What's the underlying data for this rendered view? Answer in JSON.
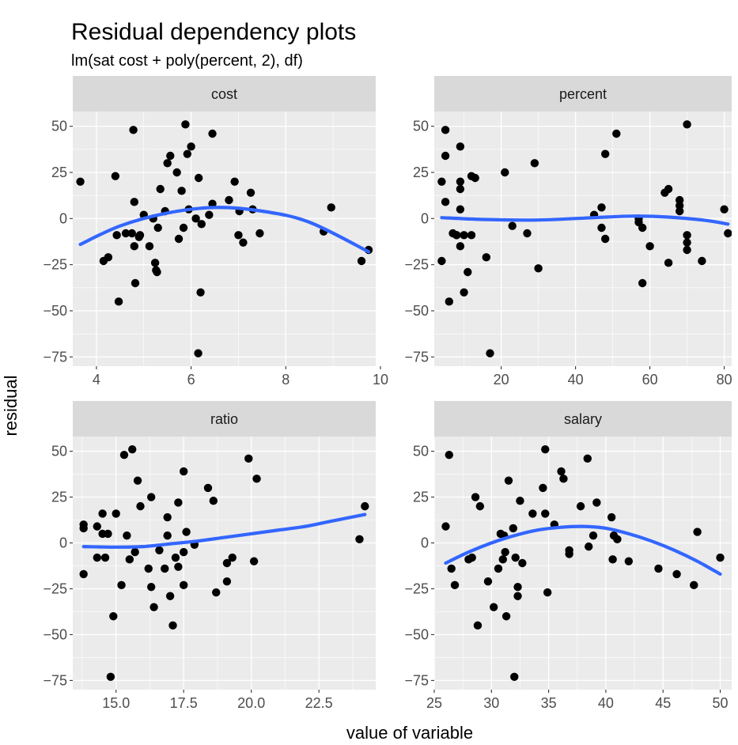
{
  "chart_data": {
    "type": "scatter",
    "title": "Residual dependency plots",
    "subtitle": "lm(sat cost + poly(percent, 2), df)",
    "xlabel": "value of variable",
    "ylabel": "residual",
    "grid": true,
    "colors": {
      "panel_bg": "#ebebeb",
      "strip_bg": "#d9d9d9",
      "grid_major": "#ffffff",
      "point": "#000000",
      "smooth": "#3366ff",
      "tick_text": "#4d4d4d"
    },
    "y_axis": {
      "range": [
        -80,
        58
      ],
      "ticks": [
        -75,
        -50,
        -25,
        0,
        25,
        50
      ],
      "tick_labels": [
        "−75",
        "−50",
        "−25",
        "0",
        "25",
        "50"
      ]
    },
    "panels": [
      {
        "facet": "cost",
        "xlim": [
          3.5,
          9.9
        ],
        "x_ticks": [
          4,
          6,
          8,
          10
        ],
        "x_tick_labels": [
          "4",
          "6",
          "8",
          "10"
        ],
        "points": [
          [
            3.66,
            20
          ],
          [
            4.15,
            -23
          ],
          [
            4.25,
            -21
          ],
          [
            4.4,
            23
          ],
          [
            4.43,
            -9
          ],
          [
            4.47,
            -45
          ],
          [
            4.62,
            -8
          ],
          [
            4.75,
            -8
          ],
          [
            4.78,
            48
          ],
          [
            4.8,
            9
          ],
          [
            4.8,
            -15
          ],
          [
            4.82,
            -35
          ],
          [
            4.9,
            -10
          ],
          [
            4.92,
            -9
          ],
          [
            5.0,
            2
          ],
          [
            5.12,
            -15
          ],
          [
            5.2,
            0
          ],
          [
            5.24,
            -24
          ],
          [
            5.26,
            -28
          ],
          [
            5.28,
            -29
          ],
          [
            5.3,
            -5
          ],
          [
            5.35,
            16
          ],
          [
            5.45,
            4
          ],
          [
            5.5,
            30
          ],
          [
            5.56,
            34
          ],
          [
            5.7,
            25
          ],
          [
            5.74,
            -11
          ],
          [
            5.8,
            15
          ],
          [
            5.84,
            -5
          ],
          [
            5.88,
            51
          ],
          [
            5.92,
            35
          ],
          [
            5.95,
            5
          ],
          [
            6.0,
            39
          ],
          [
            6.1,
            0
          ],
          [
            6.15,
            -73
          ],
          [
            6.16,
            22
          ],
          [
            6.2,
            -40
          ],
          [
            6.22,
            -3
          ],
          [
            6.38,
            2
          ],
          [
            6.45,
            46
          ],
          [
            6.45,
            8
          ],
          [
            6.8,
            10
          ],
          [
            6.92,
            20
          ],
          [
            7.0,
            -9
          ],
          [
            7.02,
            4
          ],
          [
            7.1,
            -13
          ],
          [
            7.26,
            14
          ],
          [
            7.3,
            5
          ],
          [
            7.45,
            -8
          ],
          [
            8.8,
            -7
          ],
          [
            8.96,
            6
          ],
          [
            9.6,
            -23
          ],
          [
            9.75,
            -17
          ]
        ],
        "smooth": [
          [
            3.66,
            -14
          ],
          [
            4.5,
            -4
          ],
          [
            5.5,
            3
          ],
          [
            6.5,
            6
          ],
          [
            7.5,
            4
          ],
          [
            8.5,
            -2
          ],
          [
            9.75,
            -18
          ]
        ]
      },
      {
        "facet": "percent",
        "xlim": [
          2,
          82
        ],
        "x_ticks": [
          20,
          40,
          60,
          80
        ],
        "x_tick_labels": [
          "20",
          "40",
          "60",
          "80"
        ],
        "points": [
          [
            4,
            20
          ],
          [
            4,
            -23
          ],
          [
            5,
            48
          ],
          [
            5,
            34
          ],
          [
            5,
            9
          ],
          [
            6,
            -45
          ],
          [
            7,
            -8
          ],
          [
            8,
            -9
          ],
          [
            8,
            -9
          ],
          [
            9,
            39
          ],
          [
            9,
            20
          ],
          [
            9,
            16
          ],
          [
            9,
            5
          ],
          [
            9,
            -15
          ],
          [
            10,
            -9
          ],
          [
            10,
            -40
          ],
          [
            11,
            -29
          ],
          [
            12,
            -9
          ],
          [
            12,
            23
          ],
          [
            13,
            22
          ],
          [
            16,
            -21
          ],
          [
            17,
            -73
          ],
          [
            21,
            25
          ],
          [
            23,
            -4
          ],
          [
            27,
            -8
          ],
          [
            29,
            30
          ],
          [
            30,
            -27
          ],
          [
            45,
            2
          ],
          [
            47,
            6
          ],
          [
            47,
            -5
          ],
          [
            48,
            35
          ],
          [
            48,
            -11
          ],
          [
            51,
            46
          ],
          [
            57,
            0
          ],
          [
            57,
            -2
          ],
          [
            58,
            -35
          ],
          [
            58,
            -5
          ],
          [
            60,
            -15
          ],
          [
            64,
            14
          ],
          [
            65,
            16
          ],
          [
            65,
            -24
          ],
          [
            68,
            10
          ],
          [
            68,
            7
          ],
          [
            68,
            4
          ],
          [
            70,
            51
          ],
          [
            70,
            -9
          ],
          [
            70,
            -13
          ],
          [
            70,
            -17
          ],
          [
            74,
            -23
          ],
          [
            80,
            5
          ],
          [
            81,
            -8
          ]
        ],
        "smooth": [
          [
            4,
            0.5
          ],
          [
            15,
            -0.5
          ],
          [
            30,
            -0.8
          ],
          [
            45,
            0.5
          ],
          [
            55,
            1.3
          ],
          [
            65,
            0.8
          ],
          [
            75,
            -1
          ],
          [
            81,
            -3
          ]
        ]
      },
      {
        "facet": "ratio",
        "xlim": [
          13.4,
          24.6
        ],
        "x_ticks": [
          15.0,
          17.5,
          20.0,
          22.5
        ],
        "x_tick_labels": [
          "15.0",
          "17.5",
          "20.0",
          "22.5"
        ],
        "points": [
          [
            13.8,
            10
          ],
          [
            13.8,
            8
          ],
          [
            13.8,
            -17
          ],
          [
            14.3,
            9
          ],
          [
            14.3,
            -8
          ],
          [
            14.5,
            5
          ],
          [
            14.5,
            16
          ],
          [
            14.6,
            -8
          ],
          [
            14.7,
            5
          ],
          [
            14.8,
            -73
          ],
          [
            14.9,
            -40
          ],
          [
            15.0,
            16
          ],
          [
            15.2,
            -23
          ],
          [
            15.3,
            48
          ],
          [
            15.4,
            4
          ],
          [
            15.5,
            -9
          ],
          [
            15.6,
            51
          ],
          [
            15.7,
            -5
          ],
          [
            15.8,
            34
          ],
          [
            15.9,
            20
          ],
          [
            16.2,
            -14
          ],
          [
            16.3,
            25
          ],
          [
            16.3,
            -24
          ],
          [
            16.4,
            -35
          ],
          [
            16.6,
            -4
          ],
          [
            16.8,
            -14
          ],
          [
            16.9,
            14
          ],
          [
            16.9,
            4
          ],
          [
            17.0,
            -29
          ],
          [
            17.1,
            -45
          ],
          [
            17.2,
            -8
          ],
          [
            17.3,
            -13
          ],
          [
            17.3,
            22
          ],
          [
            17.5,
            -23
          ],
          [
            17.5,
            39
          ],
          [
            17.5,
            -5
          ],
          [
            17.6,
            6
          ],
          [
            17.9,
            -1
          ],
          [
            18.4,
            30
          ],
          [
            18.6,
            23
          ],
          [
            18.7,
            -27
          ],
          [
            19.1,
            -21
          ],
          [
            19.1,
            -11
          ],
          [
            19.3,
            -8
          ],
          [
            19.9,
            46
          ],
          [
            20.1,
            -10
          ],
          [
            20.2,
            35
          ],
          [
            24.0,
            2
          ],
          [
            24.2,
            20
          ]
        ],
        "smooth": [
          [
            13.8,
            -2
          ],
          [
            15,
            -2.3
          ],
          [
            16,
            -2
          ],
          [
            17,
            -0.5
          ],
          [
            18,
            1
          ],
          [
            19,
            3
          ],
          [
            20,
            5
          ],
          [
            21,
            7
          ],
          [
            22,
            9
          ],
          [
            23,
            12
          ],
          [
            24.2,
            15.5
          ]
        ]
      },
      {
        "facet": "salary",
        "xlim": [
          25,
          51
        ],
        "x_ticks": [
          25,
          30,
          35,
          40,
          45,
          50
        ],
        "x_tick_labels": [
          "25",
          "30",
          "35",
          "40",
          "45",
          "50"
        ],
        "points": [
          [
            26.0,
            9
          ],
          [
            26.3,
            48
          ],
          [
            26.5,
            -14
          ],
          [
            26.8,
            -23
          ],
          [
            28.0,
            -9
          ],
          [
            28.3,
            -8
          ],
          [
            28.6,
            25
          ],
          [
            28.8,
            -45
          ],
          [
            29.0,
            20
          ],
          [
            29.7,
            -21
          ],
          [
            30.2,
            -35
          ],
          [
            30.6,
            -14
          ],
          [
            30.8,
            5
          ],
          [
            31.0,
            -9
          ],
          [
            31.1,
            4
          ],
          [
            31.2,
            -5
          ],
          [
            31.3,
            -40
          ],
          [
            31.5,
            34
          ],
          [
            31.9,
            8
          ],
          [
            32.0,
            -73
          ],
          [
            32.1,
            -8
          ],
          [
            32.3,
            -29
          ],
          [
            32.3,
            -24
          ],
          [
            32.5,
            23
          ],
          [
            32.7,
            -11
          ],
          [
            33.6,
            16
          ],
          [
            34.5,
            30
          ],
          [
            34.7,
            16
          ],
          [
            34.7,
            51
          ],
          [
            34.9,
            -27
          ],
          [
            35.5,
            10
          ],
          [
            36.1,
            39
          ],
          [
            36.3,
            35
          ],
          [
            36.8,
            -6
          ],
          [
            36.8,
            -4
          ],
          [
            37.8,
            20
          ],
          [
            38.4,
            46
          ],
          [
            38.5,
            -2
          ],
          [
            38.9,
            4
          ],
          [
            39.2,
            22
          ],
          [
            40.5,
            14
          ],
          [
            40.6,
            -9
          ],
          [
            40.7,
            4
          ],
          [
            41.0,
            2
          ],
          [
            42.0,
            -10
          ],
          [
            44.6,
            -14
          ],
          [
            46.2,
            -17
          ],
          [
            47.7,
            -23
          ],
          [
            48.0,
            6
          ],
          [
            50.0,
            -8
          ]
        ],
        "smooth": [
          [
            26,
            -11
          ],
          [
            28,
            -5
          ],
          [
            30,
            0
          ],
          [
            32,
            4
          ],
          [
            34,
            7
          ],
          [
            36,
            8.5
          ],
          [
            38,
            9
          ],
          [
            40,
            8
          ],
          [
            42,
            5
          ],
          [
            44,
            1
          ],
          [
            46,
            -4
          ],
          [
            48,
            -10
          ],
          [
            50,
            -17
          ]
        ]
      }
    ]
  }
}
